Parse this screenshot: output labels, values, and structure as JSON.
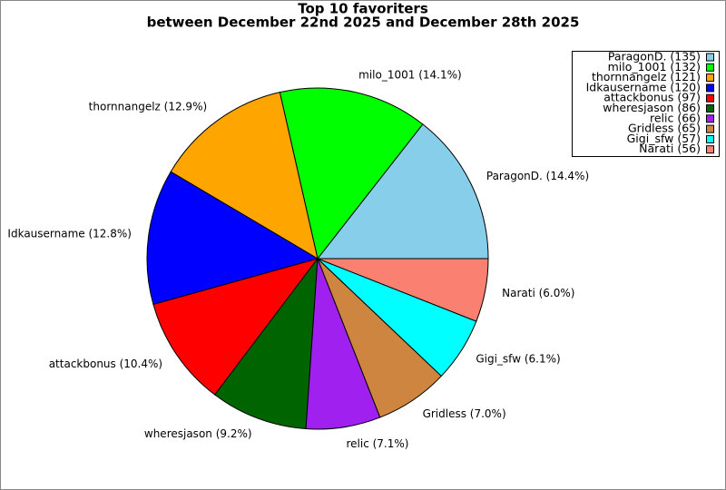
{
  "chart_data": {
    "type": "pie",
    "title": "Top 10 favoriters",
    "subtitle": "between December 22nd 2025 and December 28th 2025",
    "categories": [
      "ParagonD. (135)",
      "milo_1001 (132)",
      "thornnangelz (121)",
      "Idkausername (120)",
      "attackbonus (97)",
      "wheresjason (86)",
      "relic (66)",
      "Gridless (65)",
      "Gigi_sfw (57)",
      "Narati (56)"
    ],
    "values": [
      135,
      132,
      121,
      120,
      97,
      86,
      66,
      65,
      57,
      56
    ],
    "labels": [
      "ParagonD. (14.4%)",
      "milo_1001 (14.1%)",
      "thornnangelz (12.9%)",
      "Idkausername (12.8%)",
      "attackbonus (10.4%)",
      "wheresjason (9.2%)",
      "relic (7.1%)",
      "Gridless (7.0%)",
      "Gigi_sfw (6.1%)",
      "Narati (6.0%)"
    ],
    "colors": [
      "#87ceeb",
      "#00ff00",
      "#ffa500",
      "#0000ff",
      "#ff0000",
      "#006400",
      "#a020f0",
      "#cd853f",
      "#00ffff",
      "#fa8072"
    ],
    "legend": "upper right"
  }
}
